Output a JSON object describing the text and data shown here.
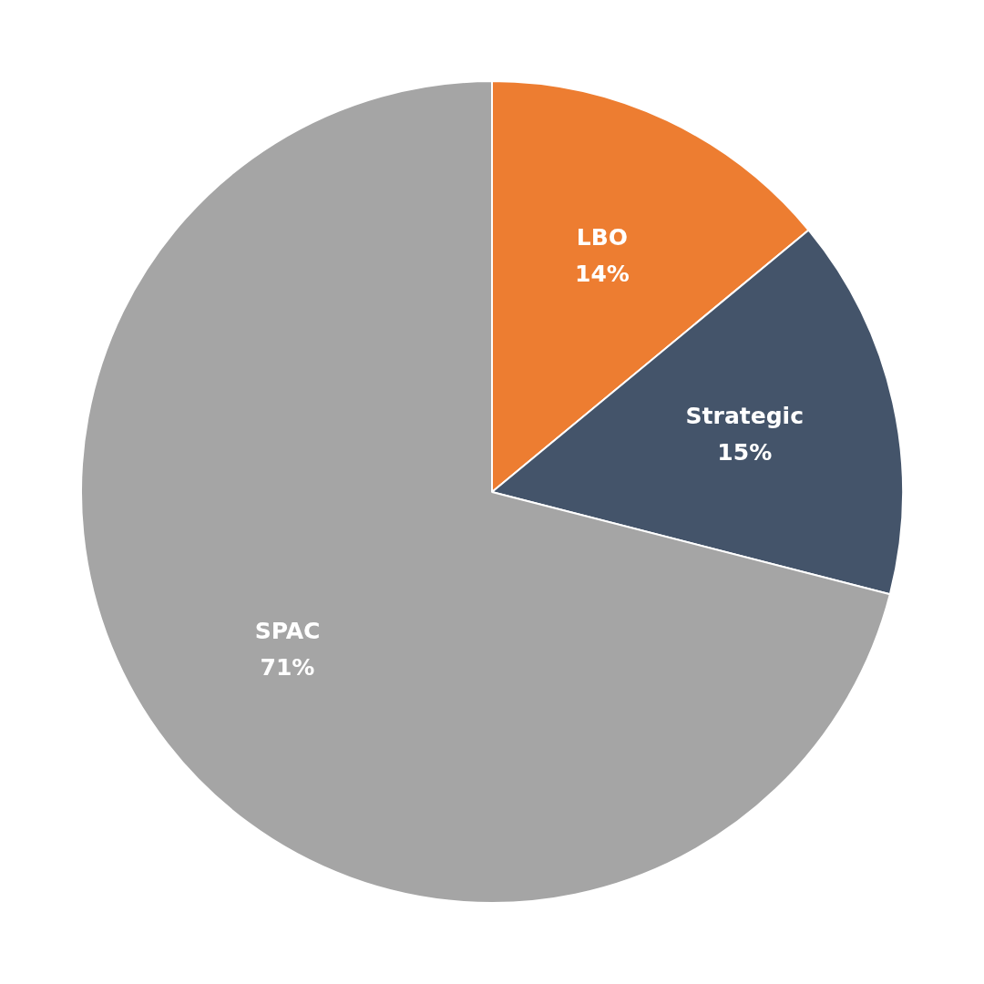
{
  "chart_data": {
    "type": "pie",
    "categories": [
      "LBO",
      "Strategic",
      "SPAC"
    ],
    "values": [
      14,
      15,
      71
    ],
    "colors": [
      "#ed7d31",
      "#44546a",
      "#a5a5a5"
    ],
    "value_labels": [
      "14%",
      "15%",
      "71%"
    ],
    "legend": false
  }
}
